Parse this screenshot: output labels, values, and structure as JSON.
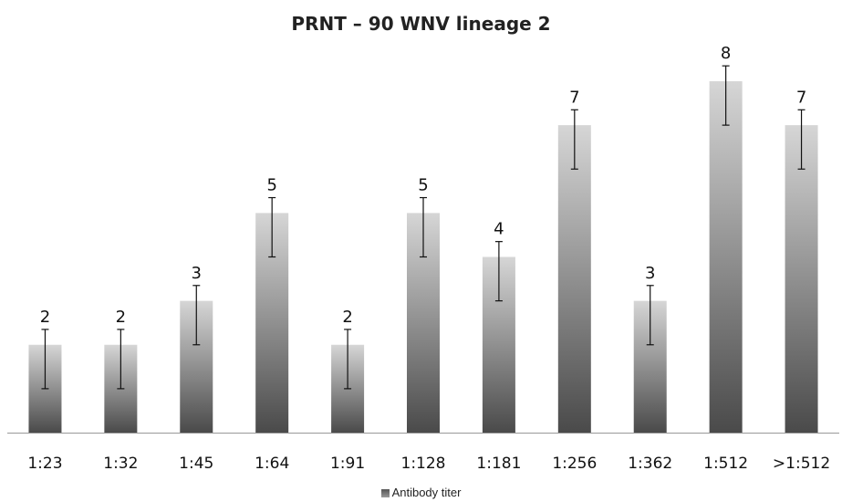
{
  "chart_data": {
    "type": "bar",
    "title": "PRNT – 90 WNV lineage 2",
    "categories": [
      "1:23",
      "1:32",
      "1:45",
      "1:64",
      "1:91",
      "1:128",
      "1:181",
      "1:256",
      "1:362",
      "1:512",
      ">1:512"
    ],
    "series": [
      {
        "name": "Antibody titer",
        "values": [
          2,
          2,
          3,
          5,
          2,
          5,
          4,
          7,
          3,
          8,
          7
        ],
        "error": [
          1,
          1,
          1,
          1,
          1,
          1,
          1,
          1,
          1,
          1,
          1
        ]
      }
    ],
    "data_labels": true,
    "ylim": [
      0,
      8.8
    ],
    "grid": false,
    "legend_position": "bottom"
  },
  "colors": {
    "bar_top": "#d6d6d6",
    "bar_bottom": "#4a4a4a",
    "axis": "#999999",
    "error_bar": "#111111"
  }
}
